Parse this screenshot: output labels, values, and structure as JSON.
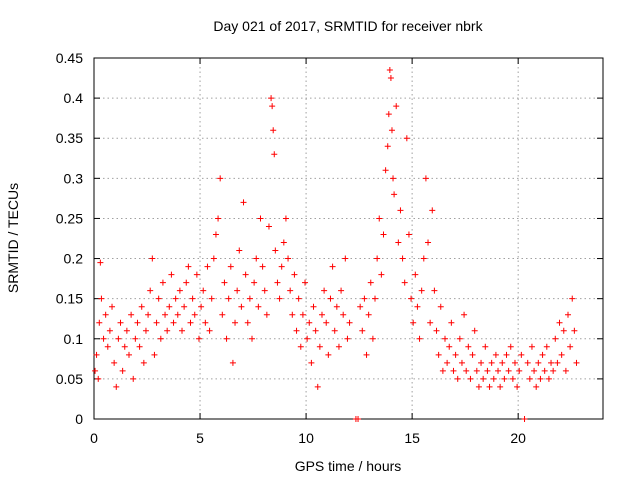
{
  "chart_data": {
    "type": "scatter",
    "title": "Day 021 of 2017, SRMTID for receiver nbrk",
    "xlabel": "GPS time / hours",
    "ylabel": "SRMTID / TECUs",
    "xlim": [
      0,
      24
    ],
    "ylim": [
      0,
      0.45
    ],
    "xticks": [
      0,
      5,
      10,
      15,
      20
    ],
    "xtick_labels": [
      "0",
      "5",
      "10",
      "15",
      "20"
    ],
    "yticks": [
      0,
      0.05,
      0.1,
      0.15,
      0.2,
      0.25,
      0.3,
      0.35,
      0.4,
      0.45
    ],
    "ytick_labels": [
      "0",
      "0.05",
      "0.1",
      "0.15",
      "0.2",
      "0.25",
      "0.3",
      "0.35",
      "0.4",
      "0.45"
    ],
    "grid": true,
    "marker": "+",
    "color": "#ff0000",
    "series": [
      {
        "name": "SRMTID",
        "points": [
          [
            0.05,
            0.06
          ],
          [
            0.12,
            0.08
          ],
          [
            0.2,
            0.05
          ],
          [
            0.25,
            0.12
          ],
          [
            0.3,
            0.195
          ],
          [
            0.35,
            0.15
          ],
          [
            0.45,
            0.1
          ],
          [
            0.55,
            0.13
          ],
          [
            0.65,
            0.09
          ],
          [
            0.75,
            0.11
          ],
          [
            0.85,
            0.14
          ],
          [
            0.95,
            0.07
          ],
          [
            1.05,
            0.04
          ],
          [
            1.15,
            0.1
          ],
          [
            1.25,
            0.12
          ],
          [
            1.35,
            0.06
          ],
          [
            1.45,
            0.09
          ],
          [
            1.55,
            0.11
          ],
          [
            1.65,
            0.08
          ],
          [
            1.75,
            0.13
          ],
          [
            1.85,
            0.05
          ],
          [
            1.95,
            0.1
          ],
          [
            2.05,
            0.12
          ],
          [
            2.15,
            0.09
          ],
          [
            2.25,
            0.14
          ],
          [
            2.35,
            0.07
          ],
          [
            2.45,
            0.11
          ],
          [
            2.55,
            0.13
          ],
          [
            2.65,
            0.16
          ],
          [
            2.75,
            0.2
          ],
          [
            2.85,
            0.08
          ],
          [
            2.95,
            0.12
          ],
          [
            3.05,
            0.15
          ],
          [
            3.15,
            0.1
          ],
          [
            3.25,
            0.17
          ],
          [
            3.35,
            0.13
          ],
          [
            3.45,
            0.11
          ],
          [
            3.55,
            0.14
          ],
          [
            3.65,
            0.18
          ],
          [
            3.75,
            0.12
          ],
          [
            3.85,
            0.15
          ],
          [
            3.95,
            0.13
          ],
          [
            4.05,
            0.16
          ],
          [
            4.15,
            0.11
          ],
          [
            4.25,
            0.14
          ],
          [
            4.35,
            0.17
          ],
          [
            4.45,
            0.19
          ],
          [
            4.55,
            0.12
          ],
          [
            4.65,
            0.15
          ],
          [
            4.75,
            0.13
          ],
          [
            4.85,
            0.18
          ],
          [
            4.95,
            0.1
          ],
          [
            5.05,
            0.14
          ],
          [
            5.15,
            0.16
          ],
          [
            5.25,
            0.12
          ],
          [
            5.35,
            0.19
          ],
          [
            5.45,
            0.11
          ],
          [
            5.55,
            0.15
          ],
          [
            5.65,
            0.2
          ],
          [
            5.75,
            0.23
          ],
          [
            5.85,
            0.25
          ],
          [
            5.95,
            0.3
          ],
          [
            6.05,
            0.13
          ],
          [
            6.15,
            0.17
          ],
          [
            6.25,
            0.1
          ],
          [
            6.35,
            0.15
          ],
          [
            6.45,
            0.19
          ],
          [
            6.55,
            0.07
          ],
          [
            6.65,
            0.12
          ],
          [
            6.75,
            0.16
          ],
          [
            6.85,
            0.21
          ],
          [
            6.95,
            0.14
          ],
          [
            7.05,
            0.27
          ],
          [
            7.15,
            0.18
          ],
          [
            7.25,
            0.12
          ],
          [
            7.35,
            0.15
          ],
          [
            7.45,
            0.1
          ],
          [
            7.55,
            0.17
          ],
          [
            7.65,
            0.2
          ],
          [
            7.75,
            0.14
          ],
          [
            7.85,
            0.25
          ],
          [
            7.95,
            0.19
          ],
          [
            8.05,
            0.16
          ],
          [
            8.15,
            0.13
          ],
          [
            8.25,
            0.24
          ],
          [
            8.35,
            0.4
          ],
          [
            8.4,
            0.39
          ],
          [
            8.45,
            0.36
          ],
          [
            8.5,
            0.33
          ],
          [
            8.55,
            0.21
          ],
          [
            8.65,
            0.17
          ],
          [
            8.75,
            0.15
          ],
          [
            8.85,
            0.19
          ],
          [
            8.95,
            0.22
          ],
          [
            9.05,
            0.25
          ],
          [
            9.15,
            0.2
          ],
          [
            9.25,
            0.16
          ],
          [
            9.35,
            0.13
          ],
          [
            9.45,
            0.18
          ],
          [
            9.55,
            0.11
          ],
          [
            9.65,
            0.15
          ],
          [
            9.75,
            0.09
          ],
          [
            9.85,
            0.13
          ],
          [
            9.95,
            0.17
          ],
          [
            10.05,
            0.1
          ],
          [
            10.15,
            0.12
          ],
          [
            10.25,
            0.07
          ],
          [
            10.35,
            0.14
          ],
          [
            10.45,
            0.11
          ],
          [
            10.55,
            0.04
          ],
          [
            10.65,
            0.09
          ],
          [
            10.75,
            0.13
          ],
          [
            10.85,
            0.16
          ],
          [
            10.95,
            0.12
          ],
          [
            11.05,
            0.08
          ],
          [
            11.15,
            0.15
          ],
          [
            11.25,
            0.19
          ],
          [
            11.35,
            0.11
          ],
          [
            11.45,
            0.14
          ],
          [
            11.55,
            0.09
          ],
          [
            11.65,
            0.16
          ],
          [
            11.75,
            0.13
          ],
          [
            11.85,
            0.2
          ],
          [
            11.95,
            0.1
          ],
          [
            12.05,
            0.12
          ],
          [
            12.35,
            0.0
          ],
          [
            12.45,
            0.0
          ],
          [
            12.55,
            0.14
          ],
          [
            12.65,
            0.11
          ],
          [
            12.75,
            0.15
          ],
          [
            12.85,
            0.08
          ],
          [
            12.95,
            0.13
          ],
          [
            13.05,
            0.17
          ],
          [
            13.15,
            0.1
          ],
          [
            13.25,
            0.15
          ],
          [
            13.35,
            0.2
          ],
          [
            13.45,
            0.25
          ],
          [
            13.55,
            0.18
          ],
          [
            13.65,
            0.23
          ],
          [
            13.75,
            0.31
          ],
          [
            13.85,
            0.34
          ],
          [
            13.9,
            0.38
          ],
          [
            13.95,
            0.435
          ],
          [
            14.0,
            0.425
          ],
          [
            14.05,
            0.36
          ],
          [
            14.1,
            0.3
          ],
          [
            14.15,
            0.28
          ],
          [
            14.25,
            0.39
          ],
          [
            14.35,
            0.22
          ],
          [
            14.45,
            0.26
          ],
          [
            14.55,
            0.2
          ],
          [
            14.65,
            0.17
          ],
          [
            14.75,
            0.35
          ],
          [
            14.85,
            0.23
          ],
          [
            14.95,
            0.15
          ],
          [
            15.05,
            0.12
          ],
          [
            15.15,
            0.18
          ],
          [
            15.25,
            0.14
          ],
          [
            15.35,
            0.1
          ],
          [
            15.45,
            0.16
          ],
          [
            15.55,
            0.2
          ],
          [
            15.65,
            0.3
          ],
          [
            15.75,
            0.22
          ],
          [
            15.85,
            0.12
          ],
          [
            15.95,
            0.26
          ],
          [
            16.05,
            0.16
          ],
          [
            16.15,
            0.11
          ],
          [
            16.25,
            0.08
          ],
          [
            16.35,
            0.14
          ],
          [
            16.45,
            0.06
          ],
          [
            16.55,
            0.1
          ],
          [
            16.65,
            0.07
          ],
          [
            16.75,
            0.09
          ],
          [
            16.85,
            0.12
          ],
          [
            16.95,
            0.06
          ],
          [
            17.05,
            0.08
          ],
          [
            17.15,
            0.05
          ],
          [
            17.25,
            0.1
          ],
          [
            17.35,
            0.07
          ],
          [
            17.45,
            0.13
          ],
          [
            17.55,
            0.06
          ],
          [
            17.65,
            0.09
          ],
          [
            17.75,
            0.05
          ],
          [
            17.85,
            0.08
          ],
          [
            17.95,
            0.11
          ],
          [
            18.05,
            0.06
          ],
          [
            18.15,
            0.04
          ],
          [
            18.25,
            0.07
          ],
          [
            18.35,
            0.05
          ],
          [
            18.45,
            0.09
          ],
          [
            18.55,
            0.06
          ],
          [
            18.65,
            0.04
          ],
          [
            18.75,
            0.07
          ],
          [
            18.85,
            0.05
          ],
          [
            18.95,
            0.08
          ],
          [
            19.05,
            0.06
          ],
          [
            19.15,
            0.04
          ],
          [
            19.25,
            0.07
          ],
          [
            19.35,
            0.05
          ],
          [
            19.45,
            0.08
          ],
          [
            19.55,
            0.06
          ],
          [
            19.65,
            0.09
          ],
          [
            19.75,
            0.05
          ],
          [
            19.85,
            0.07
          ],
          [
            19.95,
            0.04
          ],
          [
            20.05,
            0.06
          ],
          [
            20.15,
            0.08
          ],
          [
            20.3,
            0.0
          ],
          [
            20.45,
            0.07
          ],
          [
            20.55,
            0.05
          ],
          [
            20.65,
            0.09
          ],
          [
            20.75,
            0.06
          ],
          [
            20.85,
            0.04
          ],
          [
            20.95,
            0.07
          ],
          [
            21.05,
            0.05
          ],
          [
            21.15,
            0.08
          ],
          [
            21.25,
            0.06
          ],
          [
            21.35,
            0.09
          ],
          [
            21.45,
            0.05
          ],
          [
            21.55,
            0.07
          ],
          [
            21.65,
            0.06
          ],
          [
            21.75,
            0.1
          ],
          [
            21.85,
            0.07
          ],
          [
            21.95,
            0.12
          ],
          [
            22.05,
            0.08
          ],
          [
            22.15,
            0.11
          ],
          [
            22.25,
            0.06
          ],
          [
            22.35,
            0.13
          ],
          [
            22.45,
            0.09
          ],
          [
            22.55,
            0.15
          ],
          [
            22.65,
            0.11
          ],
          [
            22.75,
            0.07
          ]
        ]
      }
    ]
  }
}
